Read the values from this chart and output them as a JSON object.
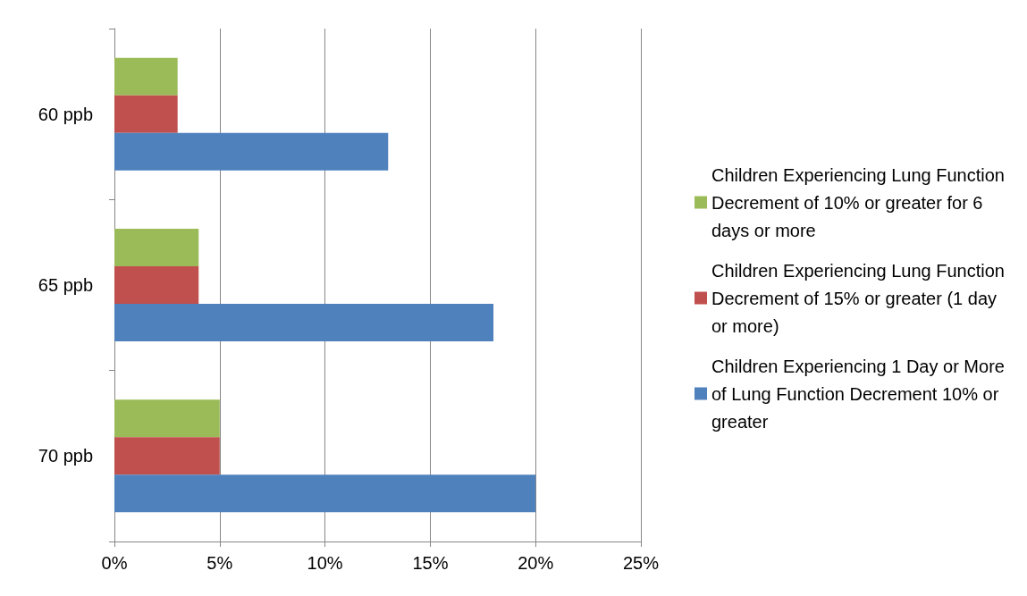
{
  "chart_data": {
    "type": "bar",
    "orientation": "horizontal",
    "categories": [
      "60 ppb",
      "65 ppb",
      "70 ppb"
    ],
    "series": [
      {
        "name": "Children Experiencing Lung Function Decrement of 10% or greater for 6 days or more",
        "color": "#9bbb59",
        "values": [
          3,
          4,
          5
        ]
      },
      {
        "name": "Children Experiencing Lung Function Decrement of 15% or greater (1 day or more)",
        "color": "#c0504d",
        "values": [
          3,
          4,
          5
        ]
      },
      {
        "name": "Children Experiencing 1 Day or More of Lung Function Decrement 10% or greater",
        "color": "#4f81bd",
        "values": [
          13,
          18,
          20
        ]
      }
    ],
    "xlim": [
      0,
      25
    ],
    "xticks": [
      {
        "value": 0,
        "label": "0%"
      },
      {
        "value": 5,
        "label": "5%"
      },
      {
        "value": 10,
        "label": "10%"
      },
      {
        "value": 15,
        "label": "15%"
      },
      {
        "value": 20,
        "label": "20%"
      },
      {
        "value": 25,
        "label": "25%"
      }
    ],
    "grid": "x",
    "legend": "right"
  }
}
